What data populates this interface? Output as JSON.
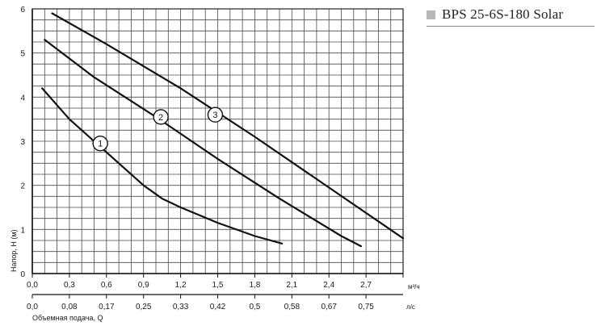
{
  "legend": {
    "title": "BPS 25-6S-180 Solar",
    "color": "#b8b8b8"
  },
  "chart_data": {
    "type": "line",
    "ylabel": "Напор, H (м)",
    "xlabel": "Объемная подача, Q",
    "x_unit_top": "м³/ч",
    "x_unit_bottom": "л/с",
    "xlim": [
      0,
      3.0
    ],
    "ylim": [
      0,
      6
    ],
    "x_ticks": [
      "0,0",
      "0,3",
      "0,6",
      "0,9",
      "1,2",
      "1,5",
      "1,8",
      "2,1",
      "2,4",
      "2,7"
    ],
    "x_ticks_secondary": [
      "0,0",
      "0,08",
      "0,17",
      "0,25",
      "0,33",
      "0,42",
      "0,5",
      "0,58",
      "0,67",
      "0,75"
    ],
    "y_ticks": [
      "0",
      "1",
      "2",
      "3",
      "4",
      "5",
      "6"
    ],
    "grid": true,
    "series": [
      {
        "name": "1",
        "x": [
          0.08,
          0.3,
          0.6,
          0.9,
          1.05,
          1.2,
          1.5,
          1.8,
          2.02
        ],
        "y": [
          4.2,
          3.5,
          2.75,
          2.0,
          1.7,
          1.5,
          1.15,
          0.85,
          0.68
        ]
      },
      {
        "name": "2",
        "x": [
          0.1,
          0.5,
          1.0,
          1.5,
          2.0,
          2.5,
          2.66
        ],
        "y": [
          5.3,
          4.45,
          3.55,
          2.6,
          1.7,
          0.85,
          0.62
        ]
      },
      {
        "name": "3",
        "x": [
          0.16,
          0.6,
          1.2,
          1.8,
          2.4,
          3.0
        ],
        "y": [
          5.9,
          5.2,
          4.2,
          3.1,
          1.95,
          0.8
        ]
      }
    ],
    "markers": [
      {
        "label": "1",
        "x": 0.55,
        "y": 2.95
      },
      {
        "label": "2",
        "x": 1.04,
        "y": 3.55
      },
      {
        "label": "3",
        "x": 1.48,
        "y": 3.6
      }
    ]
  }
}
